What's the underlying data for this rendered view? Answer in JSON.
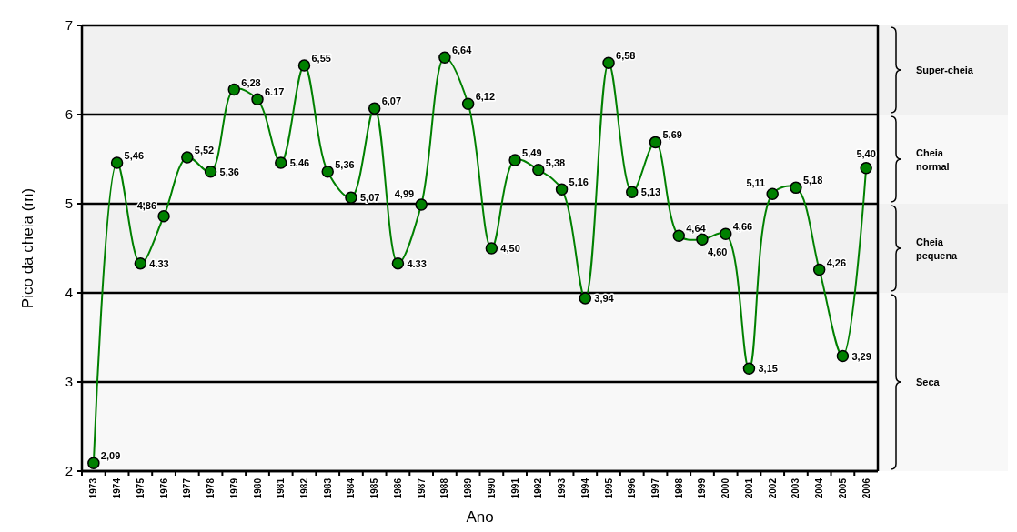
{
  "chart_data": {
    "type": "line",
    "xlabel": "Ano",
    "ylabel": "Pico da cheia (m)",
    "categories": [
      "1973",
      "1974",
      "1975",
      "1976",
      "1977",
      "1978",
      "1979",
      "1980",
      "1981",
      "1982",
      "1983",
      "1984",
      "1985",
      "1986",
      "1987",
      "1988",
      "1989",
      "1990",
      "1991",
      "1992",
      "1993",
      "1994",
      "1995",
      "1996",
      "1997",
      "1998",
      "1999",
      "2000",
      "2001",
      "2002",
      "2003",
      "2004",
      "2005",
      "2006"
    ],
    "series": [
      {
        "color": "#008000",
        "values": [
          2.09,
          5.46,
          4.33,
          4.86,
          5.52,
          5.36,
          6.28,
          6.17,
          5.46,
          6.55,
          5.36,
          5.07,
          6.07,
          4.33,
          4.99,
          6.64,
          6.12,
          4.5,
          5.49,
          5.38,
          5.16,
          3.94,
          6.58,
          5.13,
          5.69,
          4.64,
          4.6,
          4.66,
          3.15,
          5.11,
          5.18,
          4.26,
          3.29,
          5.4
        ],
        "value_labels": [
          "2,09",
          "5,46",
          "4.33",
          "4,86",
          "5,52",
          "5,36",
          "6,28",
          "6.17",
          "5,46",
          "6,55",
          "5,36",
          "5,07",
          "6,07",
          "4.33",
          "4,99",
          "6,64",
          "6,12",
          "4,50",
          "5,49",
          "5,38",
          "5,16",
          "3,94",
          "6,58",
          "5,13",
          "5,69",
          "4,64",
          "4,60",
          "4,66",
          "3,15",
          "5,11",
          "5,18",
          "4,26",
          "3,29",
          "5,40"
        ]
      }
    ],
    "ylim": [
      2,
      7
    ],
    "yticks": [
      2,
      3,
      4,
      5,
      6,
      7
    ],
    "grid": "y",
    "marker": "circle",
    "line_style": "solid",
    "bands": [
      {
        "axis": "y",
        "from": 6,
        "to": 7,
        "label": "Super-cheia"
      },
      {
        "axis": "y",
        "from": 5,
        "to": 6,
        "label": "Cheia normal"
      },
      {
        "axis": "y",
        "from": 4,
        "to": 5,
        "label": "Cheia pequena"
      },
      {
        "axis": "y",
        "from": 2,
        "to": 4,
        "label": "Seca"
      }
    ]
  }
}
